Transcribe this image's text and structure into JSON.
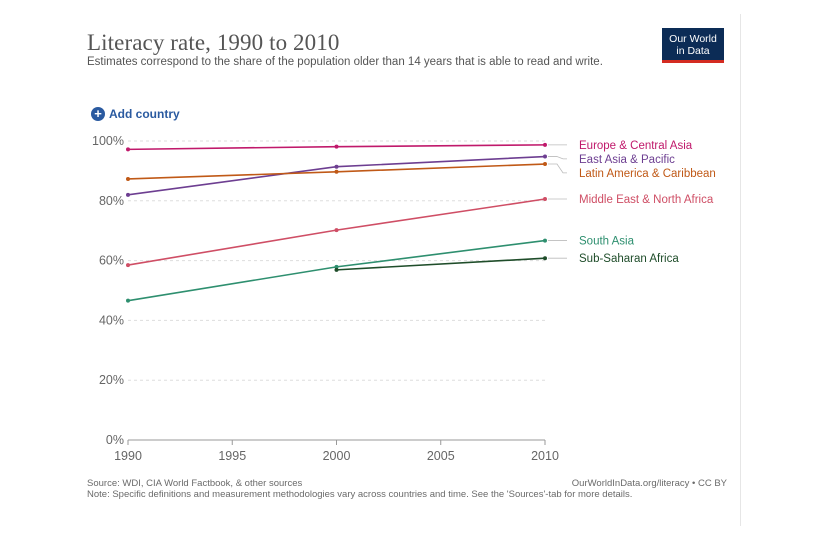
{
  "header": {
    "title": "Literacy rate, 1990 to 2010",
    "subtitle": "Estimates correspond to the share of the population older than 14 years that is able to read and write."
  },
  "logo": {
    "line1": "Our World",
    "line2": "in Data"
  },
  "controls": {
    "add_country": "Add country"
  },
  "footer": {
    "source": "Source: WDI, CIA World Factbook, & other sources",
    "url": "OurWorldInData.org/literacy • CC BY",
    "note": "Note: Specific definitions and measurement methodologies vary across countries and time. See the 'Sources'-tab for more details."
  },
  "chart_data": {
    "type": "line",
    "title": "Literacy rate, 1990 to 2010",
    "xlabel": "",
    "ylabel": "",
    "xlim": [
      1990,
      2010
    ],
    "ylim": [
      0,
      100
    ],
    "x_ticks": [
      1990,
      1995,
      2000,
      2005,
      2010
    ],
    "y_ticks": [
      0,
      20,
      40,
      60,
      80,
      100
    ],
    "y_tick_labels": [
      "0%",
      "20%",
      "40%",
      "60%",
      "80%",
      "100%"
    ],
    "grid": "horizontal dotted",
    "legend": "right (line end labels)",
    "series": [
      {
        "name": "Europe & Central Asia",
        "color": "#c0196b",
        "x": [
          1990,
          2000,
          2010
        ],
        "values": [
          97.2,
          98.1,
          98.7
        ]
      },
      {
        "name": "East Asia & Pacific",
        "color": "#6d3e91",
        "x": [
          1990,
          2000,
          2010
        ],
        "values": [
          82,
          91.4,
          94.8
        ]
      },
      {
        "name": "Latin America & Caribbean",
        "color": "#c05917",
        "x": [
          1990,
          2000,
          2010
        ],
        "values": [
          87.3,
          89.7,
          92.3
        ]
      },
      {
        "name": "Middle East & North Africa",
        "color": "#cf4e65",
        "x": [
          1990,
          2000,
          2010
        ],
        "values": [
          58.5,
          70.2,
          80.6
        ]
      },
      {
        "name": "South Asia",
        "color": "#2e8f6f",
        "x": [
          1990,
          2000,
          2010
        ],
        "values": [
          46.6,
          57.9,
          66.7
        ]
      },
      {
        "name": "Sub-Saharan Africa",
        "color": "#1f4d2a",
        "x": [
          2000,
          2010
        ],
        "values": [
          56.9,
          60.8
        ]
      }
    ]
  }
}
